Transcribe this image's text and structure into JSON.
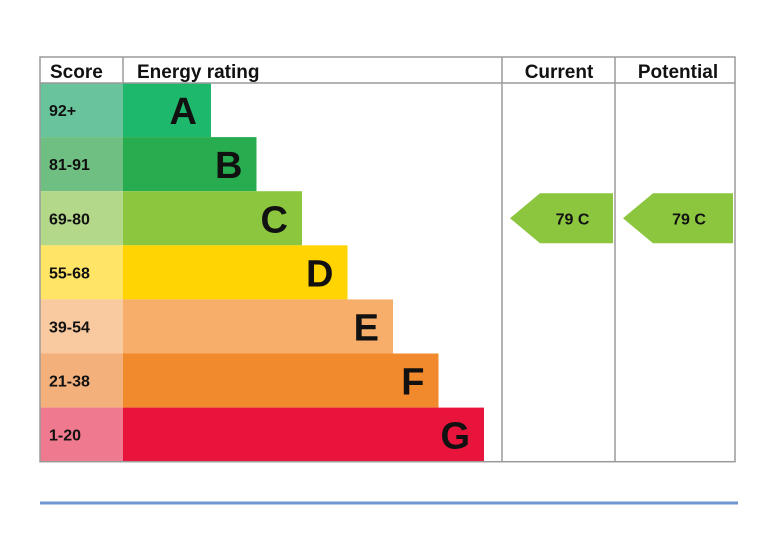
{
  "headers": {
    "score": "Score",
    "energy_rating": "Energy rating",
    "current": "Current",
    "potential": "Potential"
  },
  "chart_data": {
    "type": "bar",
    "bands": [
      {
        "letter": "A",
        "score_range": "92+",
        "bar_color": "#1db86c",
        "score_bg": "#69c49c"
      },
      {
        "letter": "B",
        "score_range": "81-91",
        "bar_color": "#27ad4f",
        "score_bg": "#6fbf82"
      },
      {
        "letter": "C",
        "score_range": "69-80",
        "bar_color": "#8cc63f",
        "score_bg": "#b4d88a"
      },
      {
        "letter": "D",
        "score_range": "55-68",
        "bar_color": "#ffd400",
        "score_bg": "#ffe466"
      },
      {
        "letter": "E",
        "score_range": "39-54",
        "bar_color": "#f7ae6a",
        "score_bg": "#f9c9a0"
      },
      {
        "letter": "F",
        "score_range": "21-38",
        "bar_color": "#f08a2c",
        "score_bg": "#f3b07a"
      },
      {
        "letter": "G",
        "score_range": "1-20",
        "bar_color": "#e8143c",
        "score_bg": "#ef7a8f"
      }
    ],
    "current": {
      "value": 79,
      "band": "C",
      "label": "79  C",
      "color": "#8cc63f"
    },
    "potential": {
      "value": 79,
      "band": "C",
      "label": "79  C",
      "color": "#8cc63f"
    }
  },
  "colors": {
    "border": "#9a9a9a",
    "footer_rule": "#6f96cf"
  }
}
